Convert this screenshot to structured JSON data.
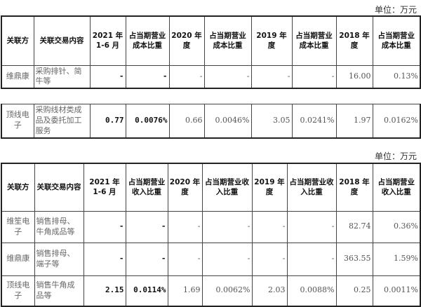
{
  "unit_label": "单位：万元",
  "table1": {
    "headers": [
      "关联方",
      "关联交易内容",
      "2021 年 1-6 月",
      "占当期营业成本比重",
      "2020 年度",
      "占当期营业成本比重",
      "2019 年度",
      "占当期营业成本比重",
      "2018 年度",
      "占当期营业成本比重"
    ],
    "rows": [
      [
        "维鼎康",
        "采购排针、简牛等",
        "-",
        "-",
        "-",
        "-",
        "-",
        "-",
        "16.00",
        "0.13%"
      ]
    ],
    "continued_rows": [
      [
        "顶线电子",
        "采购线材类成品及委托加工服务",
        "0.77",
        "0.0076%",
        "0.66",
        "0.0046%",
        "3.05",
        "0.0241%",
        "1.97",
        "0.0162%"
      ]
    ]
  },
  "table2": {
    "headers": [
      "关联方",
      "关联交易内容",
      "2021 年 1-6 月",
      "占当期营业收入比重",
      "2020 年度",
      "占当期营业收入比重",
      "2019 年度",
      "占当期营业收入比重",
      "2018 年度",
      "占当期营业收入比重"
    ],
    "rows": [
      [
        "维笙电子",
        "销售排母、牛角成品等",
        "-",
        "-",
        "-",
        "-",
        "-",
        "-",
        "82.74",
        "0.36%"
      ],
      [
        "维鼎康",
        "销售排母、端子等",
        "-",
        "-",
        "-",
        "-",
        "-",
        "-",
        "363.55",
        "1.59%"
      ],
      [
        "顶线电子",
        "销售牛角成品等",
        "2.15",
        "0.0114%",
        "1.69",
        "0.0062%",
        "2.03",
        "0.0088%",
        "0.25",
        "0.0011%"
      ]
    ]
  }
}
